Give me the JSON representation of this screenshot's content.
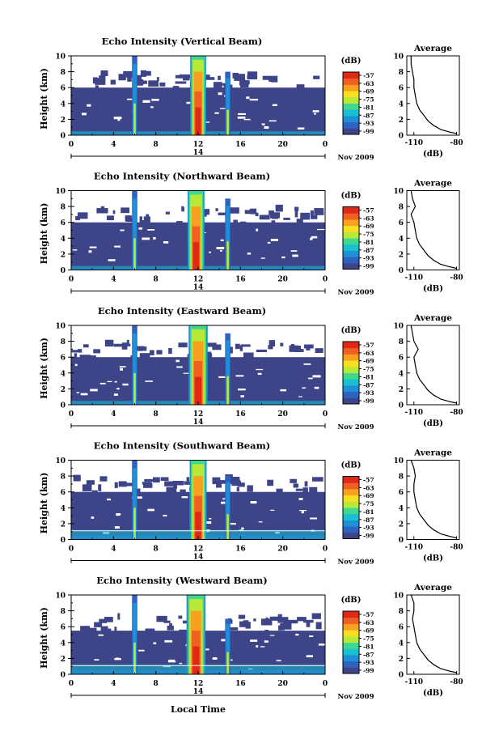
{
  "figure": {
    "xlabel": "Local Time",
    "panels": [
      {
        "title": "Echo Intensity (Vertical Beam)"
      },
      {
        "title": "Echo Intensity (Northward Beam)"
      },
      {
        "title": "Echo Intensity (Eastward Beam)"
      },
      {
        "title": "Echo Intensity (Southward Beam)"
      },
      {
        "title": "Echo Intensity (Westward Beam)"
      }
    ],
    "ylabel": "Height (km)",
    "date_label": "Nov 2009",
    "date_tick": "14",
    "colorbar_unit": "(dB)",
    "colorbar_ticks": [
      "-57",
      "-63",
      "-69",
      "-75",
      "-81",
      "-87",
      "-93",
      "-99"
    ],
    "avg_title": "Average",
    "avg_xlabel": "(dB)",
    "avg_xticks": [
      "-110",
      "-80"
    ],
    "x_ticks": [
      "0",
      "4",
      "8",
      "12",
      "16",
      "20",
      "0"
    ],
    "y_ticks": [
      "0",
      "2",
      "4",
      "6",
      "8",
      "10"
    ],
    "colors": {
      "background_echo": "#3d4488",
      "colormap": [
        "#3d4488",
        "#2e62c0",
        "#1e90d8",
        "#18c0d0",
        "#40d890",
        "#b8e838",
        "#f8e020",
        "#f8a020",
        "#f06020",
        "#e02818"
      ]
    }
  },
  "chart_data": [
    {
      "type": "heatmap",
      "title": "Echo Intensity (Vertical Beam)",
      "xlabel": "Local Time",
      "ylabel": "Height (km)",
      "xlim": [
        0,
        24
      ],
      "ylim": [
        0,
        10
      ],
      "unit": "dB",
      "color_range": [
        -99,
        -57
      ],
      "features": [
        {
          "kind": "background",
          "y_top": 6.0,
          "value": -99
        },
        {
          "kind": "column",
          "x_center": 6.0,
          "width": 0.5,
          "y_top": 10,
          "value": -87
        },
        {
          "kind": "column",
          "x_center": 12.0,
          "width": 1.5,
          "y_top": 10,
          "value": -57
        },
        {
          "kind": "column",
          "x_center": 14.8,
          "width": 0.5,
          "y_top": 8,
          "value": -87
        },
        {
          "kind": "surface_layer",
          "y_top": 0.5,
          "value": -81
        }
      ]
    },
    {
      "type": "line",
      "title": "Average",
      "xlabel": "(dB)",
      "ylabel": "Height (km)",
      "xlim": [
        -115,
        -78
      ],
      "ylim": [
        0,
        10
      ],
      "x": [
        -112,
        -112,
        -111,
        -110,
        -110,
        -109,
        -108,
        -106,
        -103,
        -100,
        -96,
        -91,
        -85,
        -80
      ],
      "y": [
        10,
        9,
        8,
        7,
        6,
        5,
        4,
        3.2,
        2.5,
        1.8,
        1.2,
        0.7,
        0.4,
        0.2
      ]
    },
    {
      "type": "heatmap",
      "title": "Echo Intensity (Northward Beam)",
      "xlabel": "Local Time",
      "ylabel": "Height (km)",
      "xlim": [
        0,
        24
      ],
      "ylim": [
        0,
        10
      ],
      "unit": "dB",
      "color_range": [
        -99,
        -57
      ],
      "features": [
        {
          "kind": "background",
          "y_top": 6.0,
          "value": -99
        },
        {
          "kind": "column",
          "x_center": 6.0,
          "width": 0.5,
          "y_top": 10,
          "value": -87
        },
        {
          "kind": "column",
          "x_center": 11.8,
          "width": 1.6,
          "y_top": 10,
          "value": -57
        },
        {
          "kind": "column",
          "x_center": 14.8,
          "width": 0.5,
          "y_top": 9,
          "value": -87
        },
        {
          "kind": "surface_layer",
          "y_top": 0.5,
          "value": -81
        }
      ]
    },
    {
      "type": "line",
      "title": "Average",
      "xlabel": "(dB)",
      "ylabel": "Height (km)",
      "xlim": [
        -115,
        -78
      ],
      "ylim": [
        0,
        10
      ],
      "x": [
        -112,
        -111,
        -109,
        -112,
        -110,
        -109,
        -108,
        -106,
        -103,
        -100,
        -96,
        -91,
        -85,
        -80
      ],
      "y": [
        10,
        9,
        8,
        7,
        6,
        5,
        4,
        3.2,
        2.5,
        1.8,
        1.2,
        0.7,
        0.4,
        0.2
      ]
    },
    {
      "type": "heatmap",
      "title": "Echo Intensity (Eastward Beam)",
      "xlabel": "Local Time",
      "ylabel": "Height (km)",
      "xlim": [
        0,
        24
      ],
      "ylim": [
        0,
        10
      ],
      "unit": "dB",
      "color_range": [
        -99,
        -57
      ],
      "features": [
        {
          "kind": "background",
          "y_top": 6.0,
          "value": -99
        },
        {
          "kind": "column",
          "x_center": 6.0,
          "width": 0.5,
          "y_top": 10,
          "value": -87
        },
        {
          "kind": "column",
          "x_center": 12.0,
          "width": 1.8,
          "y_top": 10,
          "value": -57
        },
        {
          "kind": "column",
          "x_center": 14.8,
          "width": 0.5,
          "y_top": 9,
          "value": -87
        },
        {
          "kind": "surface_layer",
          "y_top": 0.5,
          "value": -81
        }
      ]
    },
    {
      "type": "line",
      "title": "Average",
      "xlabel": "(dB)",
      "ylabel": "Height (km)",
      "xlim": [
        -115,
        -78
      ],
      "ylim": [
        0,
        10
      ],
      "x": [
        -112,
        -111,
        -110,
        -107,
        -110,
        -109,
        -108,
        -106,
        -103,
        -100,
        -96,
        -91,
        -85,
        -80
      ],
      "y": [
        10,
        9,
        8,
        7,
        6,
        5,
        4,
        3.2,
        2.5,
        1.8,
        1.2,
        0.7,
        0.4,
        0.2
      ]
    },
    {
      "type": "heatmap",
      "title": "Echo Intensity (Southward Beam)",
      "xlabel": "Local Time",
      "ylabel": "Height (km)",
      "xlim": [
        0,
        24
      ],
      "ylim": [
        0,
        10
      ],
      "unit": "dB",
      "color_range": [
        -99,
        -57
      ],
      "features": [
        {
          "kind": "background",
          "y_top": 6.0,
          "value": -99
        },
        {
          "kind": "column",
          "x_center": 6.0,
          "width": 0.5,
          "y_top": 10,
          "value": -87
        },
        {
          "kind": "column",
          "x_center": 12.0,
          "width": 1.6,
          "y_top": 10,
          "value": -57
        },
        {
          "kind": "column",
          "x_center": 14.8,
          "width": 0.5,
          "y_top": 8,
          "value": -87
        },
        {
          "kind": "surface_layer",
          "y_top": 1.2,
          "value": -81
        }
      ]
    },
    {
      "type": "line",
      "title": "Average",
      "xlabel": "(dB)",
      "ylabel": "Height (km)",
      "xlim": [
        -115,
        -78
      ],
      "ylim": [
        0,
        10
      ],
      "x": [
        -112,
        -110,
        -109,
        -110,
        -110,
        -109,
        -108,
        -106,
        -103,
        -100,
        -96,
        -91,
        -85,
        -80
      ],
      "y": [
        10,
        9,
        8,
        7,
        6,
        5,
        4,
        3.2,
        2.5,
        1.8,
        1.2,
        0.7,
        0.4,
        0.2
      ]
    },
    {
      "type": "heatmap",
      "title": "Echo Intensity (Westward Beam)",
      "xlabel": "Local Time",
      "ylabel": "Height (km)",
      "xlim": [
        0,
        24
      ],
      "ylim": [
        0,
        10
      ],
      "unit": "dB",
      "color_range": [
        -99,
        -57
      ],
      "features": [
        {
          "kind": "background",
          "y_top": 5.5,
          "value": -99
        },
        {
          "kind": "column",
          "x_center": 6.0,
          "width": 0.5,
          "y_top": 10,
          "value": -87
        },
        {
          "kind": "column",
          "x_center": 11.8,
          "width": 1.8,
          "y_top": 10,
          "value": -57
        },
        {
          "kind": "column",
          "x_center": 14.8,
          "width": 0.5,
          "y_top": 7,
          "value": -87
        },
        {
          "kind": "surface_layer",
          "y_top": 1.2,
          "value": -81
        }
      ]
    },
    {
      "type": "line",
      "title": "Average",
      "xlabel": "(dB)",
      "ylabel": "Height (km)",
      "xlim": [
        -115,
        -78
      ],
      "ylim": [
        0,
        10
      ],
      "x": [
        -112,
        -110,
        -110,
        -111,
        -110,
        -109,
        -108,
        -106,
        -103,
        -100,
        -96,
        -91,
        -85,
        -80
      ],
      "y": [
        10,
        9,
        8,
        7,
        6,
        5,
        4,
        3.2,
        2.5,
        1.8,
        1.2,
        0.7,
        0.4,
        0.2
      ]
    }
  ]
}
